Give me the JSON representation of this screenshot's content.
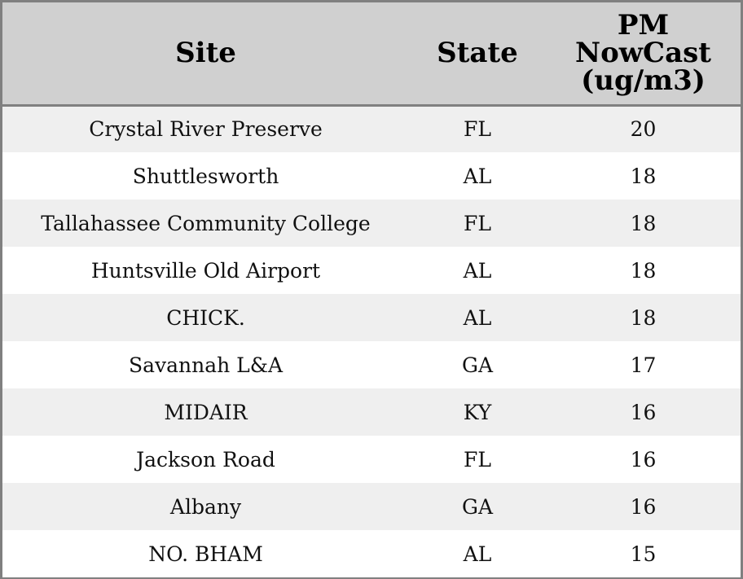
{
  "chart_data": {
    "type": "table",
    "columns": [
      "Site",
      "State",
      "PM NowCast (ug/m3)"
    ],
    "header_lines": {
      "site": "Site",
      "state": "State",
      "pm": [
        "PM",
        "NowCast",
        "(ug/m3)"
      ]
    },
    "rows": [
      {
        "site": "Crystal River Preserve",
        "state": "FL",
        "pm": "20"
      },
      {
        "site": "Shuttlesworth",
        "state": "AL",
        "pm": "18"
      },
      {
        "site": "Tallahassee Community College",
        "state": "FL",
        "pm": "18"
      },
      {
        "site": "Huntsville Old Airport",
        "state": "AL",
        "pm": "18"
      },
      {
        "site": "CHICK.",
        "state": "AL",
        "pm": "18"
      },
      {
        "site": "Savannah L&A",
        "state": "GA",
        "pm": "17"
      },
      {
        "site": "MIDAIR",
        "state": "KY",
        "pm": "16"
      },
      {
        "site": "Jackson Road",
        "state": "FL",
        "pm": "16"
      },
      {
        "site": "Albany",
        "state": "GA",
        "pm": "16"
      },
      {
        "site": "NO. BHAM",
        "state": "AL",
        "pm": "15"
      }
    ]
  },
  "colors": {
    "header_bg": "#d0d0d0",
    "stripe_bg": "#efefef",
    "row_bg": "#ffffff",
    "border": "#808080"
  }
}
